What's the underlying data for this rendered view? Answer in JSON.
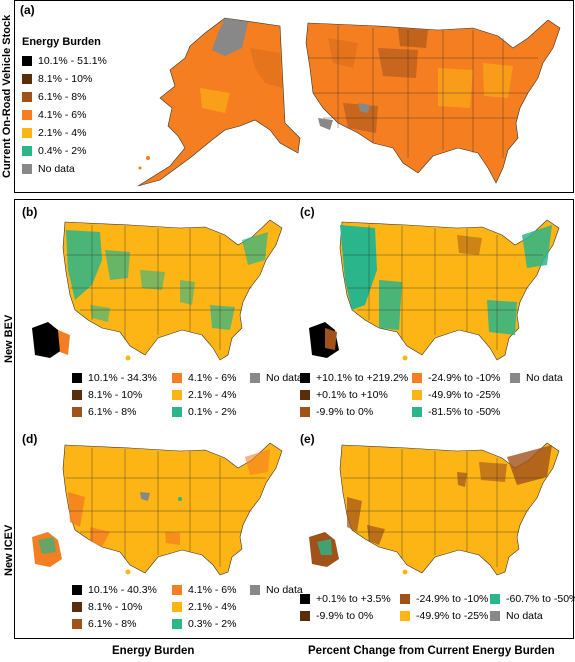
{
  "colors": {
    "black": "#000000",
    "dark_brown": "#5a2d0c",
    "brown": "#a0521a",
    "orange": "#f57e20",
    "yellow": "#fcb515",
    "teal": "#2bb58a",
    "gray": "#888888"
  },
  "panel_a": {
    "label": "(a)",
    "side_label": "Current On-Road Vehicle Stock",
    "legend_title": "Energy Burden",
    "legend": [
      {
        "text": "10.1% - 51.1%",
        "color": "#000000"
      },
      {
        "text": "8.1% - 10%",
        "color": "#5a2d0c"
      },
      {
        "text": "6.1% - 8%",
        "color": "#a0521a"
      },
      {
        "text": "4.1% - 6%",
        "color": "#f57e20"
      },
      {
        "text": "2.1% - 4%",
        "color": "#fcb515"
      },
      {
        "text": "0.4% - 2%",
        "color": "#2bb58a"
      },
      {
        "text": "No data",
        "color": "#888888"
      }
    ]
  },
  "panel_b": {
    "label": "(b)",
    "legend": [
      {
        "text": "10.1% - 34.3%",
        "color": "#000000"
      },
      {
        "text": "4.1% - 6%",
        "color": "#f57e20"
      },
      {
        "text": "No data",
        "color": "#888888"
      },
      {
        "text": "8.1% - 10%",
        "color": "#5a2d0c"
      },
      {
        "text": "2.1% - 4%",
        "color": "#fcb515"
      },
      {
        "text": "6.1% - 8%",
        "color": "#a0521a"
      },
      {
        "text": "0.1% - 2%",
        "color": "#2bb58a"
      }
    ]
  },
  "panel_c": {
    "label": "(c)",
    "legend": [
      {
        "text": "+10.1% to +219.2%",
        "color": "#000000"
      },
      {
        "text": "-24.9% to -10%",
        "color": "#f57e20"
      },
      {
        "text": "No data",
        "color": "#888888"
      },
      {
        "text": "+0.1% to +10%",
        "color": "#5a2d0c"
      },
      {
        "text": "-49.9% to -25%",
        "color": "#fcb515"
      },
      {
        "text": "-9.9% to 0%",
        "color": "#a0521a"
      },
      {
        "text": "-81.5% to -50%",
        "color": "#2bb58a"
      }
    ]
  },
  "panel_d": {
    "label": "(d)",
    "legend": [
      {
        "text": "10.1% - 40.3%",
        "color": "#000000"
      },
      {
        "text": "4.1% - 6%",
        "color": "#f57e20"
      },
      {
        "text": "No data",
        "color": "#888888"
      },
      {
        "text": "8.1% - 10%",
        "color": "#5a2d0c"
      },
      {
        "text": "2.1% - 4%",
        "color": "#fcb515"
      },
      {
        "text": "6.1% - 8%",
        "color": "#a0521a"
      },
      {
        "text": "0.3% - 2%",
        "color": "#2bb58a"
      }
    ]
  },
  "panel_e": {
    "label": "(e)",
    "legend": [
      {
        "text": "+0.1% to +3.5%",
        "color": "#000000"
      },
      {
        "text": "-24.9% to -10%",
        "color": "#a0521a"
      },
      {
        "text": "-60.7% to -50%",
        "color": "#2bb58a"
      },
      {
        "text": "-9.9% to 0%",
        "color": "#5a2d0c"
      },
      {
        "text": "-49.9% to -25%",
        "color": "#fcb515"
      },
      {
        "text": "No data",
        "color": "#888888"
      }
    ]
  },
  "row_labels": {
    "bev": "New BEV",
    "icev": "New ICEV"
  },
  "bottom_labels": {
    "left": "Energy Burden",
    "right": "Percent Change from Current Energy Burden"
  }
}
